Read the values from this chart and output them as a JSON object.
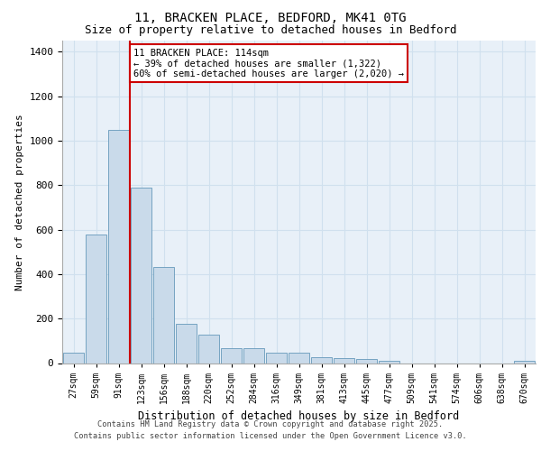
{
  "title_line1": "11, BRACKEN PLACE, BEDFORD, MK41 0TG",
  "title_line2": "Size of property relative to detached houses in Bedford",
  "xlabel": "Distribution of detached houses by size in Bedford",
  "ylabel": "Number of detached properties",
  "categories": [
    "27sqm",
    "59sqm",
    "91sqm",
    "123sqm",
    "156sqm",
    "188sqm",
    "220sqm",
    "252sqm",
    "284sqm",
    "316sqm",
    "349sqm",
    "381sqm",
    "413sqm",
    "445sqm",
    "477sqm",
    "509sqm",
    "541sqm",
    "574sqm",
    "606sqm",
    "638sqm",
    "670sqm"
  ],
  "values": [
    45,
    580,
    1050,
    790,
    430,
    178,
    128,
    68,
    68,
    45,
    45,
    28,
    22,
    18,
    10,
    0,
    0,
    0,
    0,
    0,
    12
  ],
  "bar_color": "#c9daea",
  "bar_edge_color": "#6699bb",
  "grid_color": "#d0e0ee",
  "background_color": "#e8f0f8",
  "vline_color": "#cc0000",
  "vline_position": 2.5,
  "annotation_text": "11 BRACKEN PLACE: 114sqm\n← 39% of detached houses are smaller (1,322)\n60% of semi-detached houses are larger (2,020) →",
  "annotation_box_facecolor": "white",
  "annotation_box_edgecolor": "#cc0000",
  "ylim": [
    0,
    1450
  ],
  "yticks": [
    0,
    200,
    400,
    600,
    800,
    1000,
    1200,
    1400
  ],
  "title_fontsize": 10,
  "subtitle_fontsize": 9,
  "footer_line1": "Contains HM Land Registry data © Crown copyright and database right 2025.",
  "footer_line2": "Contains public sector information licensed under the Open Government Licence v3.0."
}
